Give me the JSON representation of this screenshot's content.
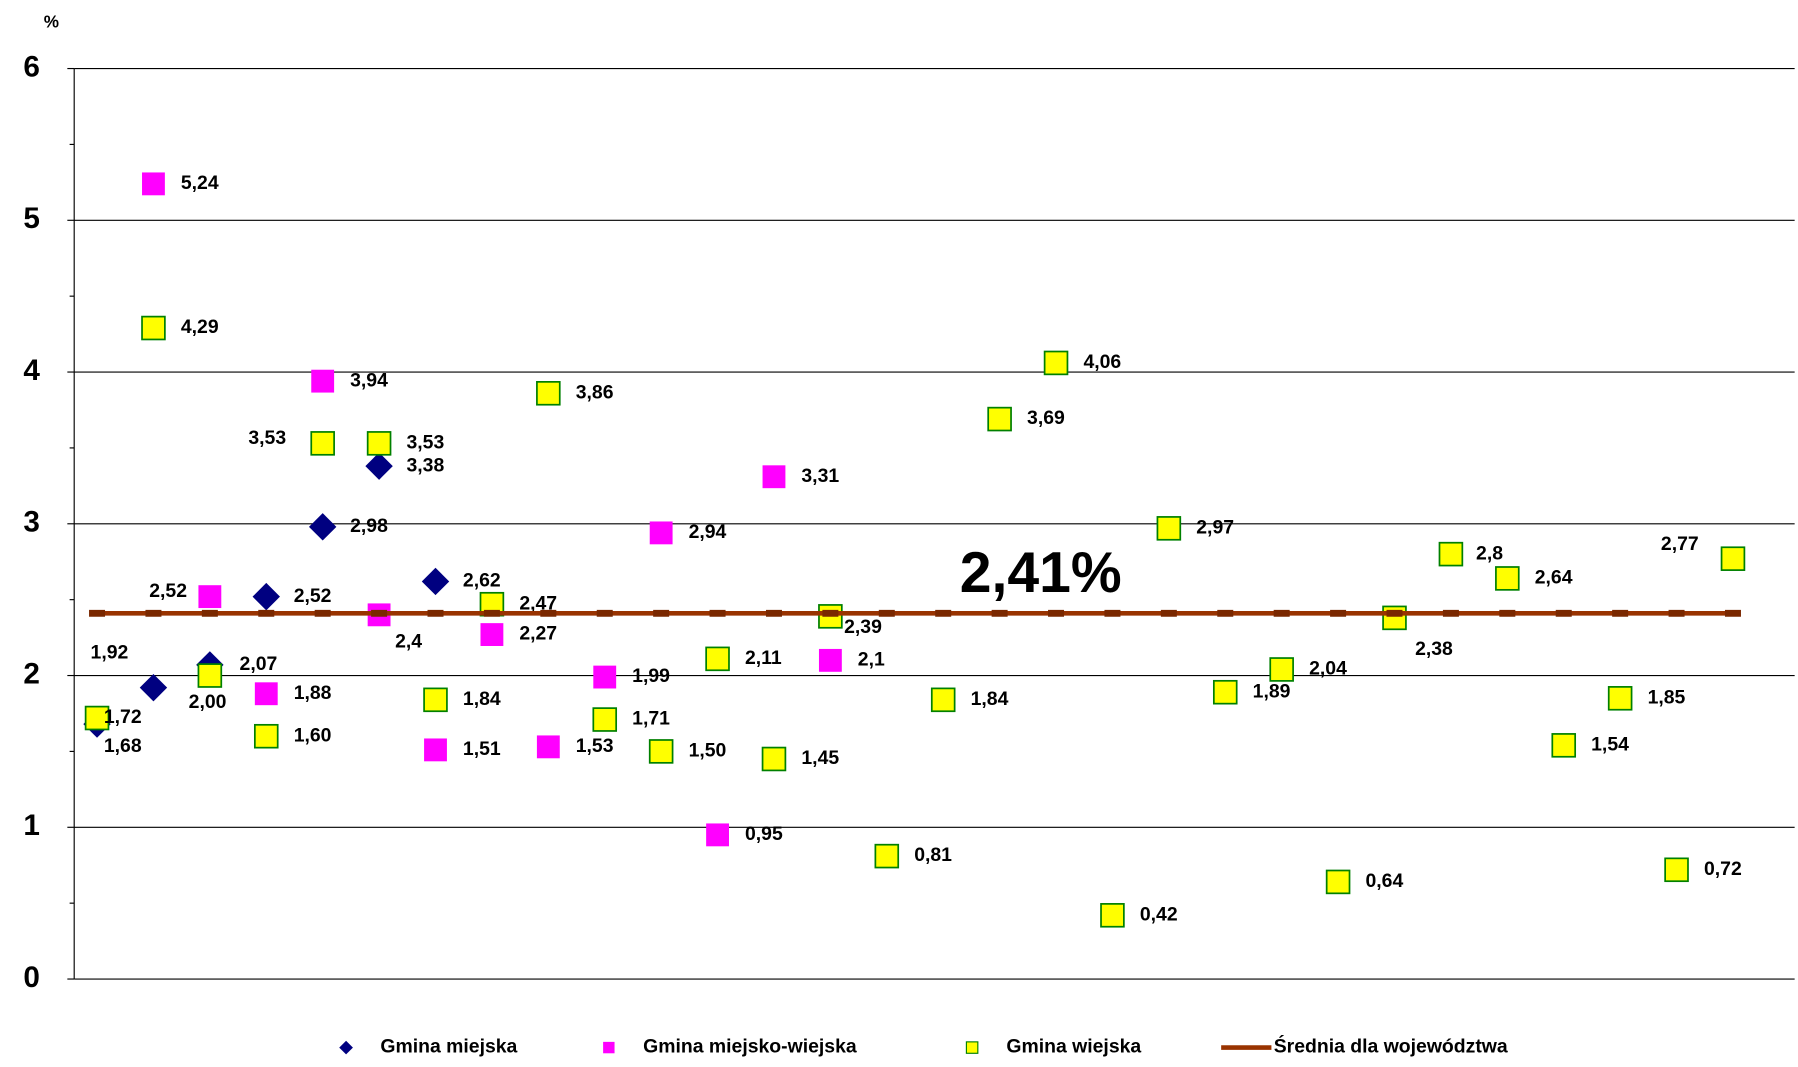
{
  "chart_data": {
    "type": "line",
    "y_axis_label": "%",
    "annotation": "2,41%",
    "categories": [
      null,
      null,
      null,
      null,
      null,
      null,
      null,
      null,
      null,
      null,
      null,
      null,
      null,
      null,
      null,
      null,
      null,
      null,
      null,
      null,
      null,
      null,
      null,
      null,
      null,
      null,
      null,
      null,
      null,
      null
    ],
    "ylim": [
      0,
      6
    ],
    "yticks": [
      0,
      1,
      2,
      3,
      4,
      5,
      6
    ],
    "grid": true,
    "legend": "bottom",
    "series": [
      {
        "name": "Gmina miejska",
        "color": "#000080",
        "marker": "diamond",
        "values": [
          1.68,
          1.92,
          2.07,
          2.52,
          2.98,
          3.38,
          2.62,
          null,
          null,
          null,
          null,
          null,
          null,
          null,
          null,
          null,
          null,
          null,
          null,
          null,
          null,
          null,
          null,
          null,
          null,
          null,
          null,
          null,
          null,
          null
        ],
        "value_labels": [
          "1,68",
          "1,92",
          "2,07",
          "2,52",
          "2,98",
          "3,38",
          "2,62",
          null,
          null,
          null,
          null,
          null,
          null,
          null,
          null,
          null,
          null,
          null,
          null,
          null,
          null,
          null,
          null,
          null,
          null,
          null,
          null,
          null,
          null,
          null
        ]
      },
      {
        "name": "Gmina miejsko-wiejska",
        "color": "#ff00ff",
        "marker": "square",
        "values": [
          null,
          5.24,
          2.52,
          1.88,
          3.94,
          2.4,
          1.51,
          2.27,
          1.53,
          1.99,
          2.94,
          0.95,
          3.31,
          2.1,
          null,
          null,
          null,
          null,
          null,
          null,
          null,
          null,
          null,
          null,
          null,
          null,
          null,
          null,
          null,
          null
        ],
        "value_labels": [
          null,
          "5,24",
          "2,52",
          "1,88",
          "3,94",
          "2,4",
          "1,51",
          "2,27",
          "1,53",
          "1,99",
          "2,94",
          "0,95",
          "3,31",
          "2,1",
          null,
          null,
          null,
          null,
          null,
          null,
          null,
          null,
          null,
          null,
          null,
          null,
          null,
          null,
          null,
          null
        ]
      },
      {
        "name": "Gmina wiejska",
        "color": "#ffff00",
        "edge_color": "#008000",
        "marker": "square",
        "values": [
          1.72,
          4.29,
          2.0,
          1.6,
          3.53,
          3.53,
          1.84,
          2.47,
          3.86,
          1.71,
          1.5,
          2.11,
          1.45,
          2.39,
          0.81,
          1.84,
          3.69,
          4.06,
          0.42,
          2.97,
          1.89,
          2.04,
          0.64,
          2.38,
          2.8,
          2.64,
          1.54,
          1.85,
          0.72,
          2.77
        ],
        "value_labels": [
          "1,72",
          "4,29",
          "2,00",
          "1,60",
          "3,53",
          "3,53",
          "1,84",
          "2,47",
          "3,86",
          "1,71",
          "1,50",
          "2,11",
          "1,45",
          "2,39",
          "0,81",
          "1,84",
          "3,69",
          "4,06",
          "0,42",
          "2,97",
          "1,89",
          "2,04",
          "0,64",
          "2,38",
          "2,8",
          "2,64",
          "1,54",
          "1,85",
          "0,72",
          "2,77"
        ]
      },
      {
        "name": "Średnia dla województwa",
        "color": "#993300",
        "marker": "line",
        "values": [
          2.41,
          2.41,
          2.41,
          2.41,
          2.41,
          2.41,
          2.41,
          2.41,
          2.41,
          2.41,
          2.41,
          2.41,
          2.41,
          2.41,
          2.41,
          2.41,
          2.41,
          2.41,
          2.41,
          2.41,
          2.41,
          2.41,
          2.41,
          2.41,
          2.41,
          2.41,
          2.41,
          2.41,
          2.41,
          2.41
        ]
      }
    ]
  }
}
